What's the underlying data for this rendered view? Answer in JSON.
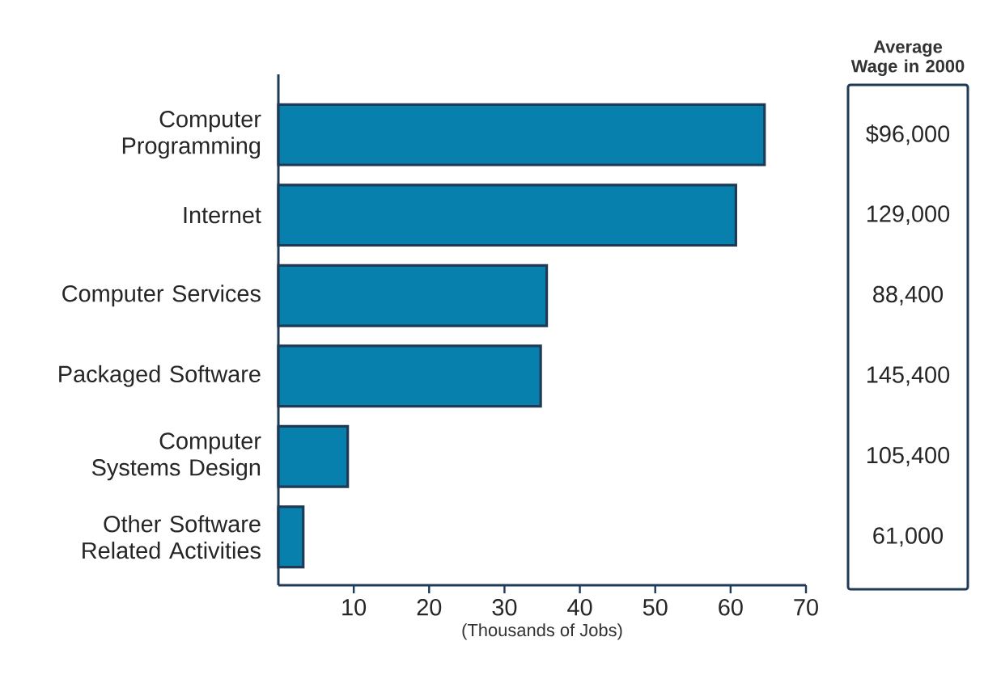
{
  "chart_data": {
    "type": "bar",
    "orientation": "horizontal",
    "categories": [
      "Computer Programming",
      "Internet",
      "Computer Services",
      "Packaged Software",
      "Computer Systems Design",
      "Other Software Related Activities"
    ],
    "values": [
      64.5,
      60.7,
      35.6,
      34.8,
      9.2,
      3.3
    ],
    "color": "#0780ad",
    "xlim": [
      0,
      70
    ],
    "xticks": [
      10,
      20,
      30,
      40,
      50,
      60,
      70
    ],
    "xlabel": "(Thousands of Jobs)",
    "annotations": [
      "Average Wage in 2000",
      "$96,000",
      "129,000",
      "88,400",
      "145,400",
      "105,400",
      "61,000"
    ]
  }
}
